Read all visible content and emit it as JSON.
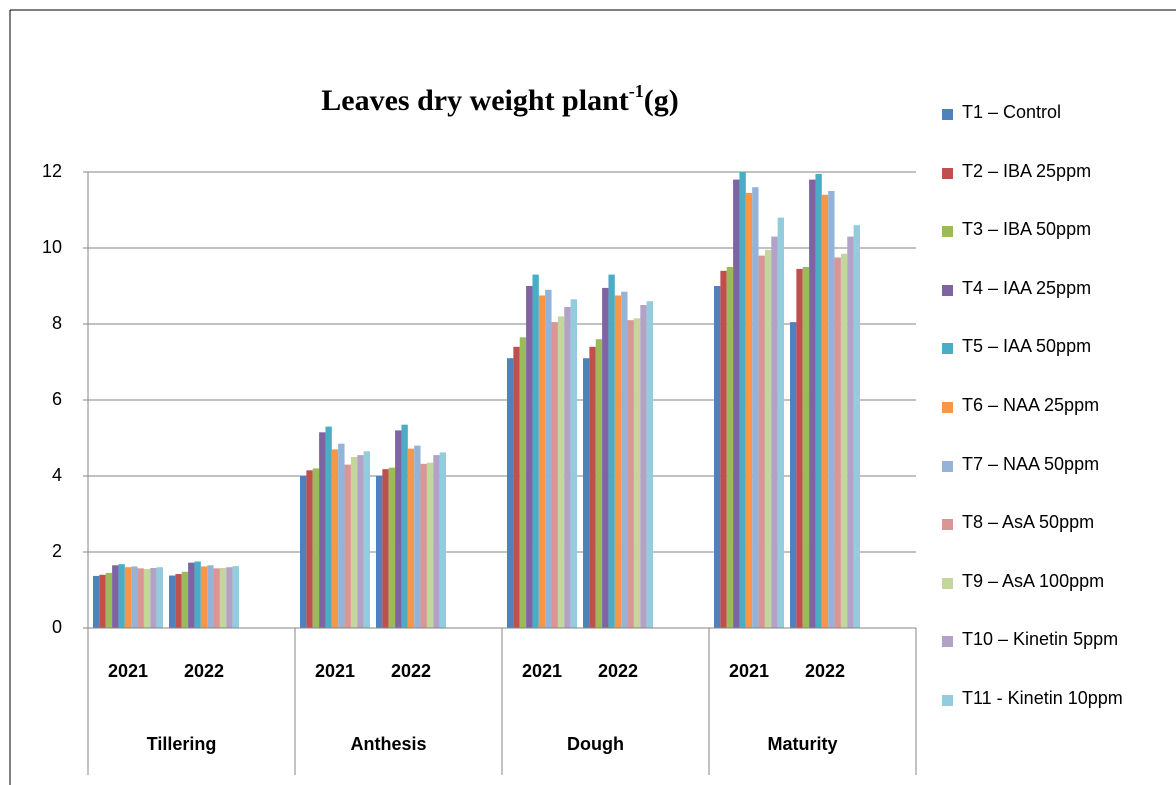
{
  "chart_data": {
    "type": "bar",
    "title": "Leaves dry weight plant",
    "title_superscript": "-1",
    "title_suffix": "(g)",
    "categories": [
      "2021",
      "2022",
      "2021",
      "2022",
      "2021",
      "2022",
      "2021",
      "2022"
    ],
    "groups": [
      "Tillering",
      "Anthesis",
      "Dough",
      "Maturity"
    ],
    "ylim": [
      0,
      12
    ],
    "yticks": [
      0,
      2,
      4,
      6,
      8,
      10,
      12
    ],
    "grid": true,
    "legend": "right",
    "series": [
      {
        "name": "T1 – Control",
        "color": "#4F81BD",
        "values": [
          1.37,
          1.38,
          4.0,
          4.0,
          7.1,
          7.1,
          9.0,
          8.05
        ]
      },
      {
        "name": "T2 – IBA 25ppm",
        "color": "#C0504D",
        "values": [
          1.4,
          1.42,
          4.15,
          4.18,
          7.4,
          7.4,
          9.4,
          9.45
        ]
      },
      {
        "name": "T3 – IBA 50ppm",
        "color": "#9BBB59",
        "values": [
          1.45,
          1.48,
          4.2,
          4.22,
          7.65,
          7.6,
          9.5,
          9.5
        ]
      },
      {
        "name": "T4 – IAA 25ppm",
        "color": "#8064A2",
        "values": [
          1.65,
          1.72,
          5.15,
          5.2,
          9.0,
          8.95,
          11.8,
          11.8
        ]
      },
      {
        "name": "T5 – IAA 50ppm",
        "color": "#4BACC6",
        "values": [
          1.68,
          1.75,
          5.3,
          5.35,
          9.3,
          9.3,
          12.0,
          11.95
        ]
      },
      {
        "name": "T6 – NAA 25ppm",
        "color": "#F79646",
        "values": [
          1.6,
          1.62,
          4.7,
          4.72,
          8.75,
          8.75,
          11.45,
          11.4
        ]
      },
      {
        "name": "T7 – NAA 50ppm",
        "color": "#95B3D7",
        "values": [
          1.62,
          1.65,
          4.85,
          4.8,
          8.9,
          8.85,
          11.6,
          11.5
        ]
      },
      {
        "name": "T8 – AsA 50ppm",
        "color": "#D99694",
        "values": [
          1.57,
          1.57,
          4.3,
          4.32,
          8.05,
          8.1,
          9.8,
          9.75
        ]
      },
      {
        "name": "T9 – AsA 100ppm",
        "color": "#C3D69B",
        "values": [
          1.55,
          1.58,
          4.5,
          4.35,
          8.2,
          8.15,
          9.95,
          9.85
        ]
      },
      {
        "name": "T10 – Kinetin 5ppm",
        "color": "#B3A2C7",
        "values": [
          1.58,
          1.6,
          4.55,
          4.55,
          8.45,
          8.5,
          10.3,
          10.3
        ]
      },
      {
        "name": "T11 - Kinetin 10ppm",
        "color": "#93CDDD",
        "values": [
          1.6,
          1.63,
          4.65,
          4.62,
          8.65,
          8.6,
          10.8,
          10.6
        ]
      }
    ]
  }
}
